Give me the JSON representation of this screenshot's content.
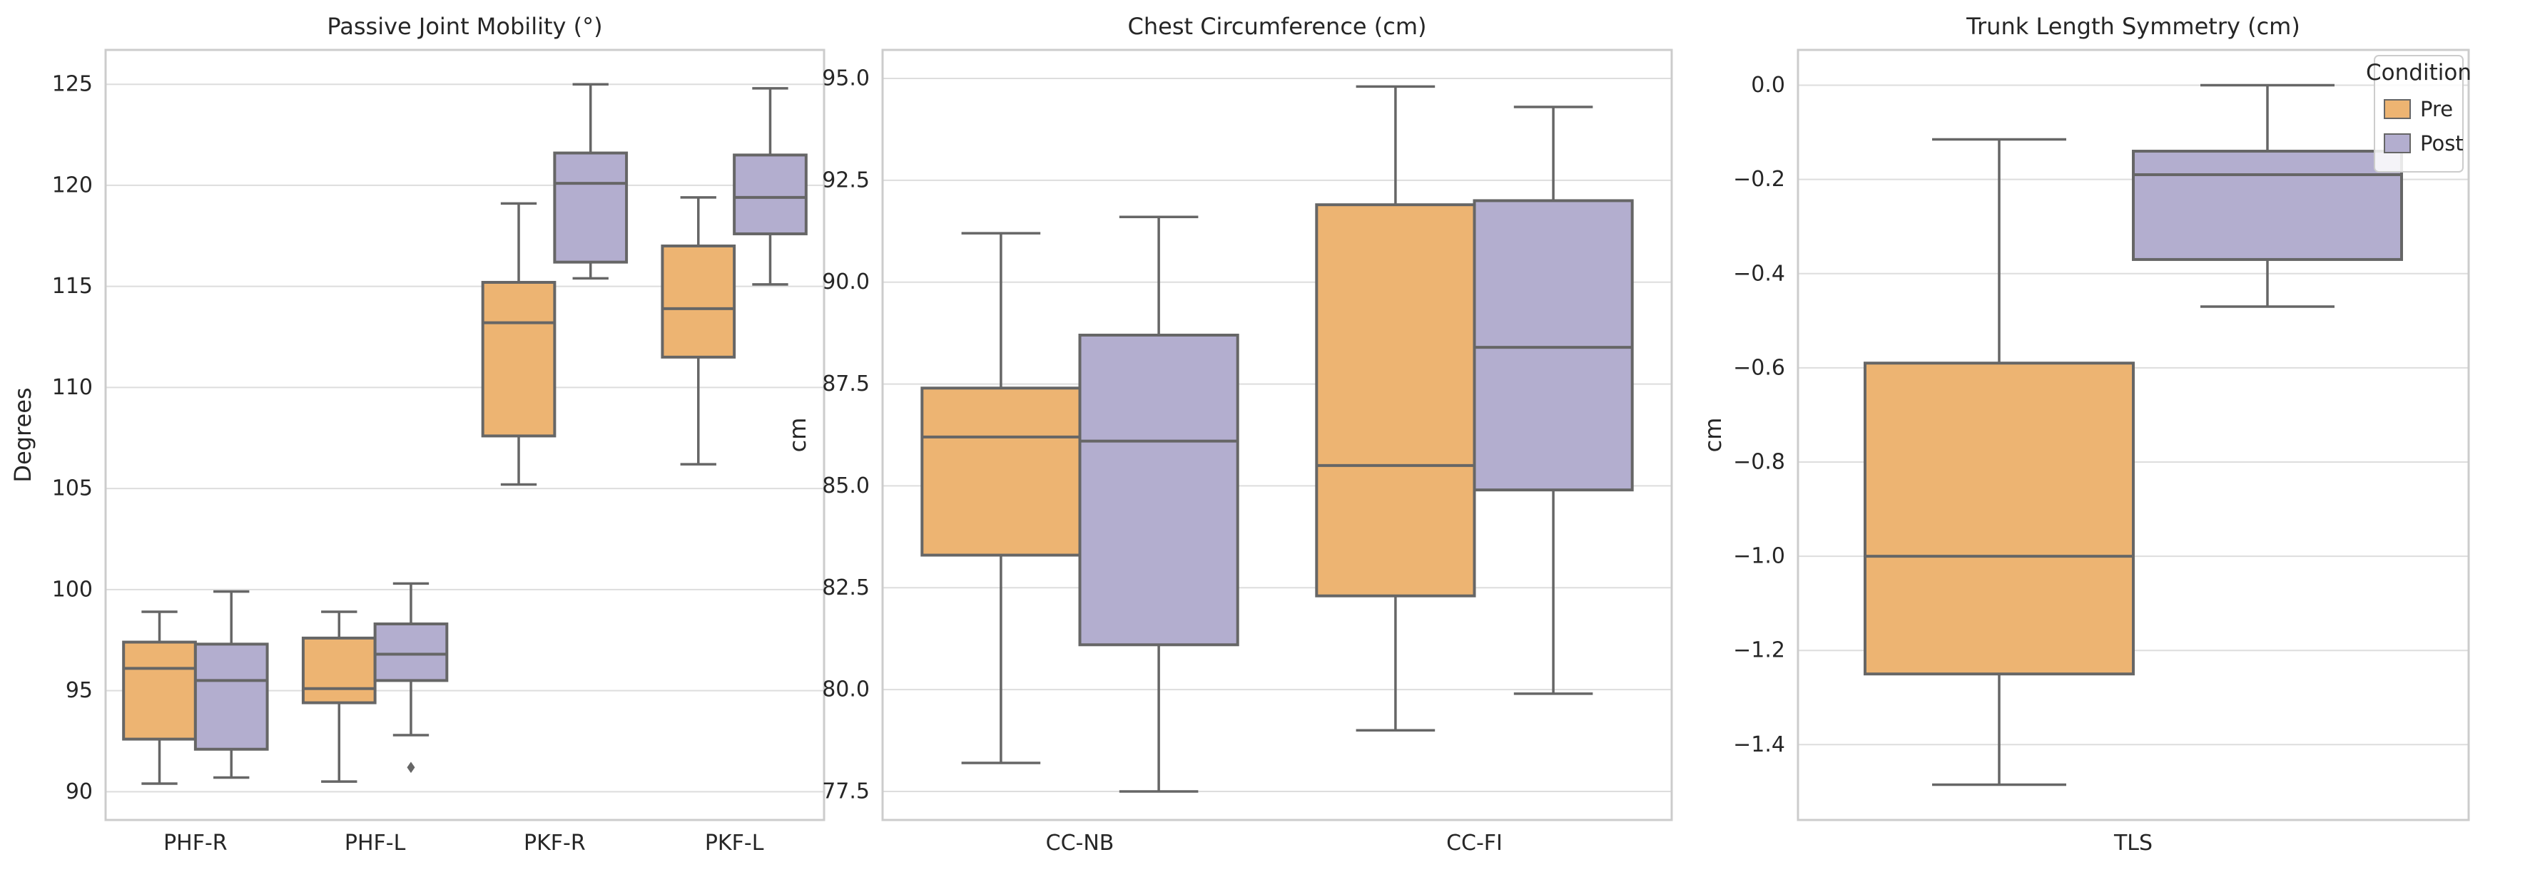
{
  "colors": {
    "pre": "#EDB472",
    "post": "#B3AECF",
    "stroke": "#666666",
    "grid": "#DDDDDD",
    "frame": "#CCCCCC",
    "text": "#262626"
  },
  "legend": {
    "title": "Condition",
    "entries": [
      "Pre",
      "Post"
    ]
  },
  "chart_data": [
    {
      "type": "box",
      "title": "Passive Joint Mobility (°)",
      "xlabel": "",
      "ylabel": "Degrees",
      "ylim": [
        88.6,
        126.7
      ],
      "yticks": [
        90,
        95,
        100,
        105,
        110,
        115,
        120,
        125
      ],
      "ytick_labels": [
        "90",
        "95",
        "100",
        "105",
        "110",
        "115",
        "120",
        "125"
      ],
      "categories": [
        "PHF-R",
        "PHF-L",
        "PKF-R",
        "PKF-L"
      ],
      "series": [
        {
          "name": "Pre",
          "boxes": [
            {
              "whislo": 90.4,
              "q1": 92.6,
              "med": 96.1,
              "q3": 97.4,
              "whishi": 98.9,
              "fliers": []
            },
            {
              "whislo": 90.5,
              "q1": 94.4,
              "med": 95.1,
              "q3": 97.6,
              "whishi": 98.9,
              "fliers": []
            },
            {
              "whislo": 105.2,
              "q1": 107.6,
              "med": 113.2,
              "q3": 115.2,
              "whishi": 119.1,
              "fliers": []
            },
            {
              "whislo": 106.2,
              "q1": 111.5,
              "med": 113.9,
              "q3": 117.0,
              "whishi": 119.4,
              "fliers": []
            }
          ]
        },
        {
          "name": "Post",
          "boxes": [
            {
              "whislo": 90.7,
              "q1": 92.1,
              "med": 95.5,
              "q3": 97.3,
              "whishi": 99.9,
              "fliers": []
            },
            {
              "whislo": 92.8,
              "q1": 95.5,
              "med": 96.8,
              "q3": 98.3,
              "whishi": 100.3,
              "fliers": [
                91.2
              ]
            },
            {
              "whislo": 115.4,
              "q1": 116.2,
              "med": 120.1,
              "q3": 121.6,
              "whishi": 125.0,
              "fliers": []
            },
            {
              "whislo": 115.1,
              "q1": 117.6,
              "med": 119.4,
              "q3": 121.5,
              "whishi": 124.8,
              "fliers": []
            }
          ]
        }
      ]
    },
    {
      "type": "box",
      "title": "Chest Circumference (cm)",
      "xlabel": "",
      "ylabel": "cm",
      "ylim": [
        76.8,
        95.7
      ],
      "yticks": [
        77.5,
        80.0,
        82.5,
        85.0,
        87.5,
        90.0,
        92.5,
        95.0
      ],
      "ytick_labels": [
        "77.5",
        "80.0",
        "82.5",
        "85.0",
        "87.5",
        "90.0",
        "92.5",
        "95.0"
      ],
      "categories": [
        "CC-NB",
        "CC-FI"
      ],
      "series": [
        {
          "name": "Pre",
          "boxes": [
            {
              "whislo": 78.2,
              "q1": 83.3,
              "med": 86.2,
              "q3": 87.4,
              "whishi": 91.2,
              "fliers": []
            },
            {
              "whislo": 79.0,
              "q1": 82.3,
              "med": 85.5,
              "q3": 91.9,
              "whishi": 94.8,
              "fliers": []
            }
          ]
        },
        {
          "name": "Post",
          "boxes": [
            {
              "whislo": 77.5,
              "q1": 81.1,
              "med": 86.1,
              "q3": 88.7,
              "whishi": 91.6,
              "fliers": []
            },
            {
              "whislo": 79.9,
              "q1": 84.9,
              "med": 88.4,
              "q3": 92.0,
              "whishi": 94.3,
              "fliers": []
            }
          ]
        }
      ]
    },
    {
      "type": "box",
      "title": "Trunk Length Symmetry (cm)",
      "xlabel": "",
      "ylabel": "cm",
      "ylim": [
        -1.56,
        0.075
      ],
      "yticks": [
        -1.4,
        -1.2,
        -1.0,
        -0.8,
        -0.6,
        -0.4,
        -0.2,
        0.0
      ],
      "ytick_labels": [
        "−1.4",
        "−1.2",
        "−1.0",
        "−0.8",
        "−0.6",
        "−0.4",
        "−0.2",
        "0.0"
      ],
      "categories": [
        "TLS"
      ],
      "series": [
        {
          "name": "Pre",
          "boxes": [
            {
              "whislo": -1.485,
              "q1": -1.25,
              "med": -1.0,
              "q3": -0.59,
              "whishi": -0.115,
              "fliers": []
            }
          ]
        },
        {
          "name": "Post",
          "boxes": [
            {
              "whislo": -0.47,
              "q1": -0.37,
              "med": -0.19,
              "q3": -0.14,
              "whishi": 0.0,
              "fliers": []
            }
          ]
        }
      ]
    }
  ]
}
